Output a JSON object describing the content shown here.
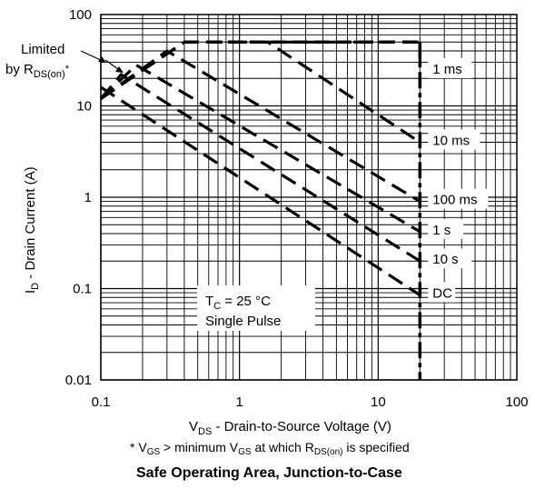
{
  "chart_data": {
    "type": "line",
    "title": "Safe Operating Area, Junction-to-Case",
    "x_axis": {
      "scale": "log",
      "range": [
        0.1,
        100
      ],
      "ticks": [
        "0.1",
        "1",
        "10",
        "100"
      ],
      "label_main": "V",
      "label_sub": "DS",
      "label_rest": " - Drain-to-Source Voltage (V)"
    },
    "y_axis": {
      "scale": "log",
      "range": [
        0.01,
        100
      ],
      "ticks": [
        "0.01",
        "0.1",
        "1",
        "10",
        "100"
      ],
      "label_main": "I",
      "label_sub": "D",
      "label_rest": " - Drain Current (A)"
    },
    "grid": "on (log minor grid)",
    "series": [
      {
        "name": "1 ms",
        "points": [
          [
            0.1,
            12
          ],
          [
            0.4,
            50
          ],
          [
            20,
            50
          ],
          [
            20,
            22
          ]
        ]
      },
      {
        "name": "10 ms",
        "points": [
          [
            0.1,
            12
          ],
          [
            0.4,
            50
          ],
          [
            1.6,
            50
          ],
          [
            20,
            4
          ]
        ]
      },
      {
        "name": "100 ms",
        "points": [
          [
            0.1,
            12
          ],
          [
            0.3,
            40
          ],
          [
            20,
            0.9
          ]
        ]
      },
      {
        "name": "1 s",
        "points": [
          [
            0.1,
            12
          ],
          [
            0.18,
            28
          ],
          [
            20,
            0.42
          ]
        ]
      },
      {
        "name": "10 s",
        "points": [
          [
            0.1,
            12
          ],
          [
            0.14,
            22
          ],
          [
            20,
            0.2
          ]
        ]
      },
      {
        "name": "DC",
        "points": [
          [
            0.1,
            16
          ],
          [
            20,
            0.085
          ]
        ]
      }
    ],
    "limit_lines": {
      "current_limit": {
        "value": 50,
        "unit": "A"
      },
      "voltage_limit": {
        "value": 20,
        "unit": "V"
      }
    },
    "annotations": {
      "limited_line1": "Limited",
      "limited_line2_prefix": "by R",
      "limited_line2_sub": "DS(on)",
      "limited_line2_suffix": "*",
      "conditions_line1_main": "T",
      "conditions_line1_sub": "C",
      "conditions_line1_rest": " = 25 °C",
      "conditions_line2": "Single Pulse"
    },
    "footnote": {
      "p1": "* V",
      "s1": "GS",
      "p2": " > minimum V",
      "s2": "GS",
      "p3": " at which R",
      "s3": "DS(on)",
      "p4": " is specified"
    }
  }
}
